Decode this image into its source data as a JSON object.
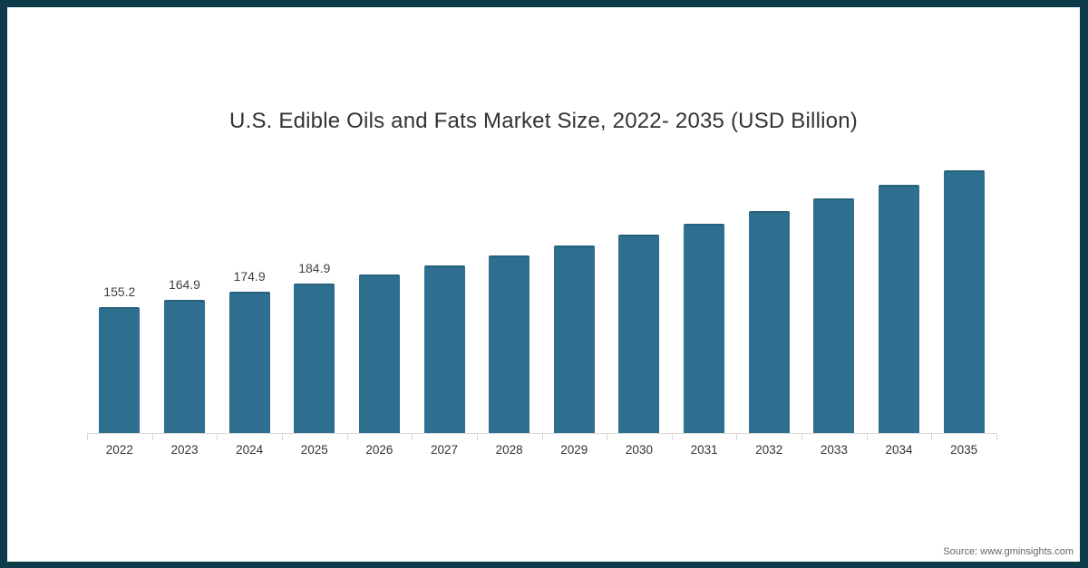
{
  "page": {
    "frame_color": "#0d3b49",
    "background": "#ffffff"
  },
  "chart_data": {
    "type": "bar",
    "title": "U.S. Edible Oils and Fats Market Size, 2022- 2035 (USD Billion)",
    "categories": [
      "2022",
      "2023",
      "2024",
      "2025",
      "2026",
      "2027",
      "2028",
      "2029",
      "2030",
      "2031",
      "2032",
      "2033",
      "2034",
      "2035"
    ],
    "values": [
      155.2,
      164.9,
      174.9,
      184.9,
      195.6,
      206.9,
      218.9,
      231.6,
      245.0,
      259.2,
      274.2,
      290.1,
      306.9,
      324.7
    ],
    "value_labels_shown": [
      "155.2",
      "164.9",
      "174.9",
      "184.9",
      "",
      "",
      "",
      "",
      "",
      "",
      "",
      "",
      "",
      ""
    ],
    "bar_color": "#2e6e8e",
    "bar_edge_color": "#27617e",
    "axis_color": "#d9d9d9",
    "value_label_color": "#404040",
    "tick_label_color": "#333333",
    "xlabel": "",
    "ylabel": "",
    "ylim": [
      0,
      340
    ],
    "grid": false,
    "legend": null
  },
  "source": {
    "label": "Source: www.gminsights.com"
  }
}
